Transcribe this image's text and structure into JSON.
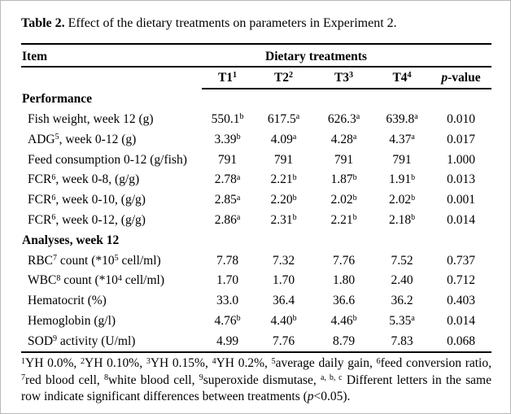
{
  "caption": {
    "label": "Table 2.",
    "text": " Effect of the dietary treatments on parameters in Experiment 2."
  },
  "table": {
    "header": {
      "item_label": "Item",
      "group_label": "Dietary treatments",
      "columns": [
        {
          "name": "t1",
          "segs": [
            {
              "t": "T1"
            },
            {
              "t": "1",
              "sup": true
            }
          ]
        },
        {
          "name": "t2",
          "segs": [
            {
              "t": "T2"
            },
            {
              "t": "2",
              "sup": true
            }
          ]
        },
        {
          "name": "t3",
          "segs": [
            {
              "t": "T3"
            },
            {
              "t": "3",
              "sup": true
            }
          ]
        },
        {
          "name": "t4",
          "segs": [
            {
              "t": "T4"
            },
            {
              "t": "4",
              "sup": true
            }
          ]
        },
        {
          "name": "p-value",
          "segs": [
            {
              "t": "p",
              "italic": true
            },
            {
              "t": "-value"
            }
          ]
        }
      ]
    },
    "rows": [
      {
        "type": "section",
        "name": "performance",
        "label": [
          {
            "t": "Performance"
          }
        ]
      },
      {
        "type": "data",
        "name": "fish-weight",
        "label": [
          {
            "t": "Fish weight, week 12 (g)"
          }
        ],
        "values": [
          {
            "t": "550.1",
            "sup": "b"
          },
          {
            "t": "617.5",
            "sup": "a"
          },
          {
            "t": "626.3",
            "sup": "a"
          },
          {
            "t": "639.8",
            "sup": "a"
          },
          {
            "t": "0.010"
          }
        ]
      },
      {
        "type": "data",
        "name": "adg",
        "label": [
          {
            "t": "ADG"
          },
          {
            "t": "5",
            "sup": true
          },
          {
            "t": ", week 0-12 (g)"
          }
        ],
        "values": [
          {
            "t": "3.39",
            "sup": "b"
          },
          {
            "t": "4.09",
            "sup": "a"
          },
          {
            "t": "4.28",
            "sup": "a"
          },
          {
            "t": "4.37",
            "sup": "a"
          },
          {
            "t": "0.017"
          }
        ]
      },
      {
        "type": "data",
        "name": "feed-consumption",
        "label": [
          {
            "t": "Feed consumption 0-12 (g/fish)"
          }
        ],
        "values": [
          {
            "t": "791"
          },
          {
            "t": "791"
          },
          {
            "t": "791"
          },
          {
            "t": "791"
          },
          {
            "t": "1.000"
          }
        ]
      },
      {
        "type": "data",
        "name": "fcr-week-0-8",
        "label": [
          {
            "t": "FCR"
          },
          {
            "t": "6",
            "sup": true
          },
          {
            "t": ", week 0-8, (g/g)"
          }
        ],
        "values": [
          {
            "t": "2.78",
            "sup": "a"
          },
          {
            "t": "2.21",
            "sup": "b"
          },
          {
            "t": "1.87",
            "sup": "b"
          },
          {
            "t": "1.91",
            "sup": "b"
          },
          {
            "t": "0.013"
          }
        ]
      },
      {
        "type": "data",
        "name": "fcr-week-0-10",
        "label": [
          {
            "t": "FCR"
          },
          {
            "t": "6",
            "sup": true
          },
          {
            "t": ", week 0-10, (g/g)"
          }
        ],
        "values": [
          {
            "t": "2.85",
            "sup": "a"
          },
          {
            "t": "2.20",
            "sup": "b"
          },
          {
            "t": "2.02",
            "sup": "b"
          },
          {
            "t": "2.02",
            "sup": "b"
          },
          {
            "t": "0.001"
          }
        ]
      },
      {
        "type": "data",
        "name": "fcr-week-0-12",
        "label": [
          {
            "t": "FCR"
          },
          {
            "t": "6",
            "sup": true
          },
          {
            "t": ", week 0-12, (g/g)"
          }
        ],
        "values": [
          {
            "t": "2.86",
            "sup": "a"
          },
          {
            "t": "2.31",
            "sup": "b"
          },
          {
            "t": "2.21",
            "sup": "b"
          },
          {
            "t": "2.18",
            "sup": "b"
          },
          {
            "t": "0.014"
          }
        ]
      },
      {
        "type": "section",
        "name": "analyses-week-12",
        "label": [
          {
            "t": "Analyses, week 12"
          }
        ]
      },
      {
        "type": "data",
        "name": "rbc-count",
        "label": [
          {
            "t": "RBC"
          },
          {
            "t": "7",
            "sup": true
          },
          {
            "t": " count (*10"
          },
          {
            "t": "5",
            "sup": true
          },
          {
            "t": " cell/ml)"
          }
        ],
        "values": [
          {
            "t": "7.78"
          },
          {
            "t": "7.32"
          },
          {
            "t": "7.76"
          },
          {
            "t": "7.52"
          },
          {
            "t": "0.737"
          }
        ]
      },
      {
        "type": "data",
        "name": "wbc-count",
        "label": [
          {
            "t": "WBC"
          },
          {
            "t": "8",
            "sup": true
          },
          {
            "t": " count (*10"
          },
          {
            "t": "4",
            "sup": true
          },
          {
            "t": " cell/ml)"
          }
        ],
        "values": [
          {
            "t": "1.70"
          },
          {
            "t": "1.70"
          },
          {
            "t": "1.80"
          },
          {
            "t": "2.40"
          },
          {
            "t": "0.712"
          }
        ]
      },
      {
        "type": "data",
        "name": "hematocrit",
        "label": [
          {
            "t": "Hematocrit (%)"
          }
        ],
        "values": [
          {
            "t": "33.0"
          },
          {
            "t": "36.4"
          },
          {
            "t": "36.6"
          },
          {
            "t": "36.2"
          },
          {
            "t": "0.403"
          }
        ]
      },
      {
        "type": "data",
        "name": "hemoglobin",
        "label": [
          {
            "t": "Hemoglobin (g/l)"
          }
        ],
        "values": [
          {
            "t": "4.76",
            "sup": "b"
          },
          {
            "t": "4.40",
            "sup": "b"
          },
          {
            "t": "4.46",
            "sup": "b"
          },
          {
            "t": "5.35",
            "sup": "a"
          },
          {
            "t": "0.014"
          }
        ]
      },
      {
        "type": "data",
        "name": "sod-activity",
        "label": [
          {
            "t": "SOD"
          },
          {
            "t": "9",
            "sup": true
          },
          {
            "t": " activity (U/ml)"
          }
        ],
        "values": [
          {
            "t": "4.99"
          },
          {
            "t": "7.76"
          },
          {
            "t": "8.79"
          },
          {
            "t": "7.83"
          },
          {
            "t": "0.068"
          }
        ]
      }
    ]
  },
  "footnote": {
    "segments": [
      {
        "t": "1",
        "sup": true
      },
      {
        "t": "YH 0.0%, "
      },
      {
        "t": "2",
        "sup": true
      },
      {
        "t": "YH 0.10%, "
      },
      {
        "t": "3",
        "sup": true
      },
      {
        "t": "YH 0.15%, "
      },
      {
        "t": "4",
        "sup": true
      },
      {
        "t": "YH 0.2%, "
      },
      {
        "t": "5",
        "sup": true
      },
      {
        "t": "average daily gain, "
      },
      {
        "t": "6",
        "sup": true
      },
      {
        "t": "feed conversion ratio, "
      },
      {
        "t": "7",
        "sup": true
      },
      {
        "t": "red blood cell, "
      },
      {
        "t": "8",
        "sup": true
      },
      {
        "t": "white blood cell, "
      },
      {
        "t": "9",
        "sup": true
      },
      {
        "t": "superoxide dismutase, "
      },
      {
        "t": "a, b, c",
        "sup": true
      },
      {
        "t": " Different letters in the same row indicate significant differences between treatments ("
      },
      {
        "t": "p",
        "italic": true
      },
      {
        "t": "<0.05)."
      }
    ]
  },
  "colors": {
    "text": "#000000",
    "rule": "#000000",
    "background": "#ffffff",
    "frame_border": "#b9b9b9"
  }
}
